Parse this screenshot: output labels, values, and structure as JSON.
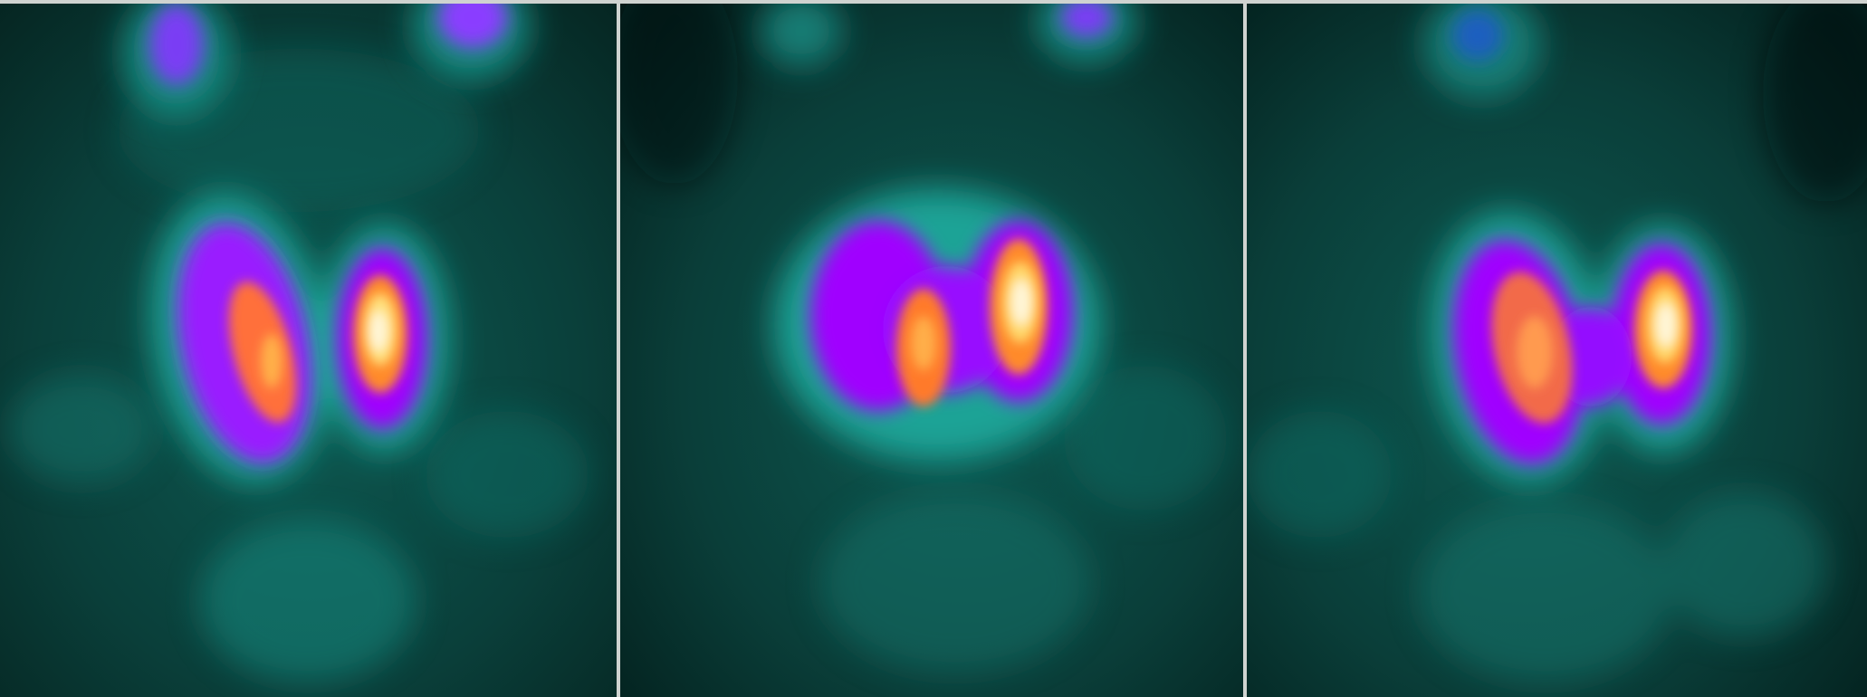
{
  "image": {
    "type": "nuclear-medicine-scintigraphy",
    "subject": "thyroid",
    "panel_count": 3,
    "colormap": [
      "#031a18",
      "#0d4a44",
      "#168a80",
      "#6a3cf0",
      "#a100ff",
      "#ff7a2a",
      "#ffd24a",
      "#fff6d8"
    ],
    "panels": [
      {
        "id": "panel-1",
        "label": ""
      },
      {
        "id": "panel-2",
        "label": ""
      },
      {
        "id": "panel-3",
        "label": ""
      }
    ]
  }
}
